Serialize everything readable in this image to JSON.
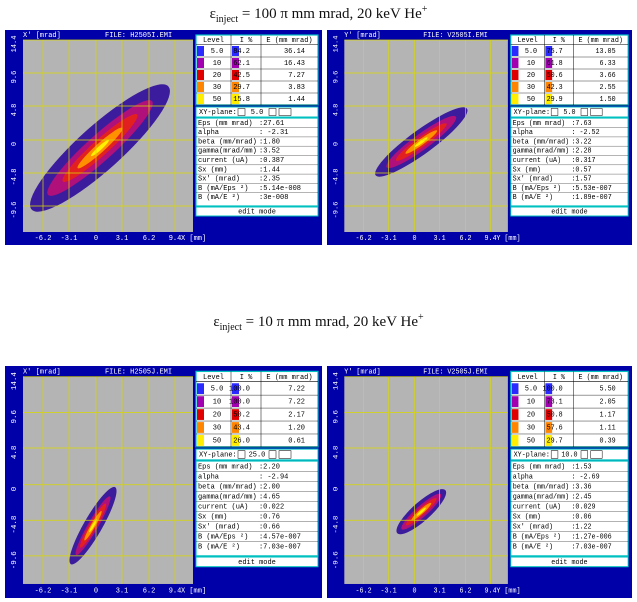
{
  "captions": [
    {
      "symbol": "ε",
      "sub": "inject",
      "text": " = 100 π mm mrad, 20 keV He",
      "sup": "+"
    },
    {
      "symbol": "ε",
      "sub": "inject",
      "text": " = 10 π mm mrad, 20 keV He",
      "sup": "+"
    }
  ],
  "panels": [
    {
      "y_label": "X' [mrad]",
      "file": "FILE: H2505I.EMI",
      "y_ticks": [
        "14.4",
        "9.6",
        "4.8",
        "0",
        "-4.8",
        "-9.6"
      ],
      "x_ticks": [
        "-6.2",
        "-3.1",
        "0",
        "3.1",
        "6.2",
        "9.4"
      ],
      "x_label": "X [mm]",
      "level_header": [
        "Level",
        "I %",
        "E (mm mrad)"
      ],
      "levels": [
        [
          "5.0",
          "84.2",
          "36.14"
        ],
        [
          "10",
          "62.1",
          "16.43"
        ],
        [
          "20",
          "42.5",
          "7.27"
        ],
        [
          "30",
          "29.7",
          "3.83"
        ],
        [
          "50",
          "15.8",
          "1.44"
        ]
      ],
      "plane_label": "XY-plane:",
      "plane_value": "5.0",
      "params": [
        [
          "Eps  (mm mrad)",
          ":27.61"
        ],
        [
          "alpha",
          ": -2.31"
        ],
        [
          "beta (mm/mrad)",
          ":1.80"
        ],
        [
          "gamma(mrad/mm)",
          ":3.52"
        ],
        [
          "current  (uA)",
          ":0.387"
        ],
        [
          "Sx      (mm)",
          ":1.44"
        ],
        [
          "Sx'    (mrad)",
          ":2.35"
        ],
        [
          "B  (mA/Eps ²)",
          ":5.14e-008"
        ],
        [
          "B   (mA/E ²)",
          ":3e-008"
        ]
      ],
      "mode": "edit mode"
    },
    {
      "y_label": "Y' [mrad]",
      "file": "FILE: V2505I.EMI",
      "y_ticks": [
        "14.4",
        "9.6",
        "4.8",
        "0",
        "-4.8",
        "-9.6"
      ],
      "x_ticks": [
        "-6.2",
        "-3.1",
        "0",
        "3.1",
        "6.2",
        "9.4"
      ],
      "x_label": "Y [mm]",
      "level_header": [
        "Level",
        "I %",
        "E (mm mrad)"
      ],
      "levels": [
        [
          "5.0",
          "75.7",
          "13.05"
        ],
        [
          "10",
          "61.8",
          "6.33"
        ],
        [
          "20",
          "50.6",
          "3.66"
        ],
        [
          "30",
          "42.3",
          "2.55"
        ],
        [
          "50",
          "29.9",
          "1.50"
        ]
      ],
      "plane_label": "XY-plane:",
      "plane_value": "5.0",
      "params": [
        [
          "Eps  (mm mrad)",
          ":7.63"
        ],
        [
          "alpha",
          ": -2.52"
        ],
        [
          "beta (mm/mrad)",
          ":3.22"
        ],
        [
          "gamma(mrad/mm)",
          ":2.28"
        ],
        [
          "current  (uA)",
          ":0.317"
        ],
        [
          "Sx      (mm)",
          ":0.57"
        ],
        [
          "Sx'    (mrad)",
          ":1.57"
        ],
        [
          "B  (mA/Eps ²)",
          ":5.53e-007"
        ],
        [
          "B   (mA/E ²)",
          ":1.89e-007"
        ]
      ],
      "mode": "edit mode"
    },
    {
      "y_label": "X' [mrad]",
      "file": "FILE: H2505J.EMI",
      "y_ticks": [
        "14.4",
        "9.6",
        "4.8",
        "0",
        "-4.8",
        "-9.6"
      ],
      "x_ticks": [
        "-6.2",
        "-3.1",
        "0",
        "3.1",
        "6.2",
        "9.4"
      ],
      "x_label": "X [mm]",
      "level_header": [
        "Level",
        "I %",
        "E (mm mrad)"
      ],
      "levels": [
        [
          "5.0",
          "100.0",
          "7.22"
        ],
        [
          "10",
          "100.0",
          "7.22"
        ],
        [
          "20",
          "50.2",
          "2.17"
        ],
        [
          "30",
          "43.4",
          "1.20"
        ],
        [
          "50",
          "26.0",
          "0.61"
        ]
      ],
      "plane_label": "XY-plane:",
      "plane_value": "25.0",
      "params": [
        [
          "Eps  (mm mrad)",
          ":2.20"
        ],
        [
          "alpha",
          ": -2.94"
        ],
        [
          "beta (mm/mrad)",
          ":2.00"
        ],
        [
          "gamma(mrad/mm)",
          ":4.65"
        ],
        [
          "current  (uA)",
          ":0.022"
        ],
        [
          "Sx      (mm)",
          ":0.76"
        ],
        [
          "Sx'    (mrad)",
          ":0.66"
        ],
        [
          "B  (mA/Eps ²)",
          ":4.57e-007"
        ],
        [
          "B   (mA/E ²)",
          ":7.03e-007"
        ]
      ],
      "mode": "edit mode"
    },
    {
      "y_label": "Y' [mrad]",
      "file": "FILE: V2505J.EMI",
      "y_ticks": [
        "14.4",
        "9.6",
        "4.8",
        "0",
        "-4.8",
        "-9.6"
      ],
      "x_ticks": [
        "-6.2",
        "-3.1",
        "0",
        "3.1",
        "6.2",
        "9.4"
      ],
      "x_label": "Y [mm]",
      "level_header": [
        "Level",
        "I %",
        "E (mm mrad)"
      ],
      "levels": [
        [
          "5.0",
          "100.0",
          "5.50"
        ],
        [
          "10",
          "73.1",
          "2.05"
        ],
        [
          "20",
          "50.8",
          "1.17"
        ],
        [
          "30",
          "57.6",
          "1.11"
        ],
        [
          "50",
          "29.7",
          "0.39"
        ]
      ],
      "plane_label": "XY-plane:",
      "plane_value": "10.0",
      "params": [
        [
          "Eps  (mm mrad)",
          ":1.53"
        ],
        [
          "alpha",
          ": -2.69"
        ],
        [
          "beta (mm/mrad)",
          ":3.36"
        ],
        [
          "gamma(mrad/mm)",
          ":2.45"
        ],
        [
          "current  (uA)",
          ":0.029"
        ],
        [
          "Sx      (mm)",
          ":0.06"
        ],
        [
          "Sx'    (mrad)",
          ":1.22"
        ],
        [
          "B  (mA/Eps ²)",
          ":1.27e-006"
        ],
        [
          "B   (mA/E ²)",
          ":7.03e-007"
        ]
      ],
      "mode": "edit mode"
    }
  ]
}
